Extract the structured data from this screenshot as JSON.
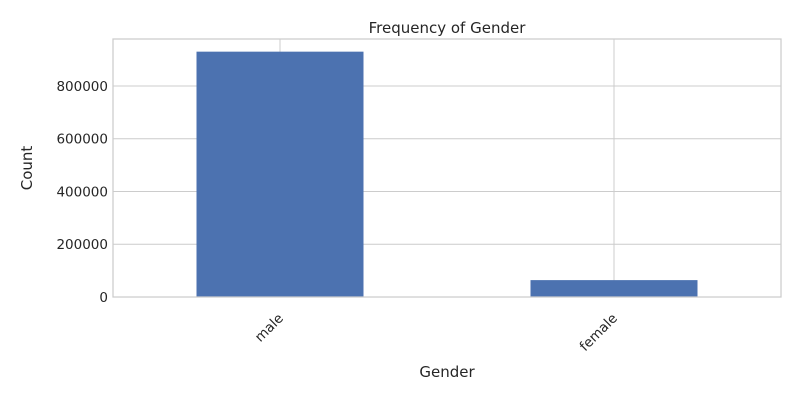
{
  "chart_data": {
    "type": "bar",
    "title": "Frequency of Gender",
    "xlabel": "Gender",
    "ylabel": "Count",
    "categories": [
      "male",
      "female"
    ],
    "values": [
      930000,
      64000
    ],
    "ylim": [
      0,
      978000
    ],
    "yticks": [
      0,
      200000,
      400000,
      600000,
      800000
    ],
    "ytick_labels": [
      "0",
      "200000",
      "400000",
      "600000",
      "800000"
    ],
    "grid": true,
    "bar_color": "#4c72b0",
    "grid_color": "#cccccc",
    "xtick_rotation_deg": 45
  }
}
